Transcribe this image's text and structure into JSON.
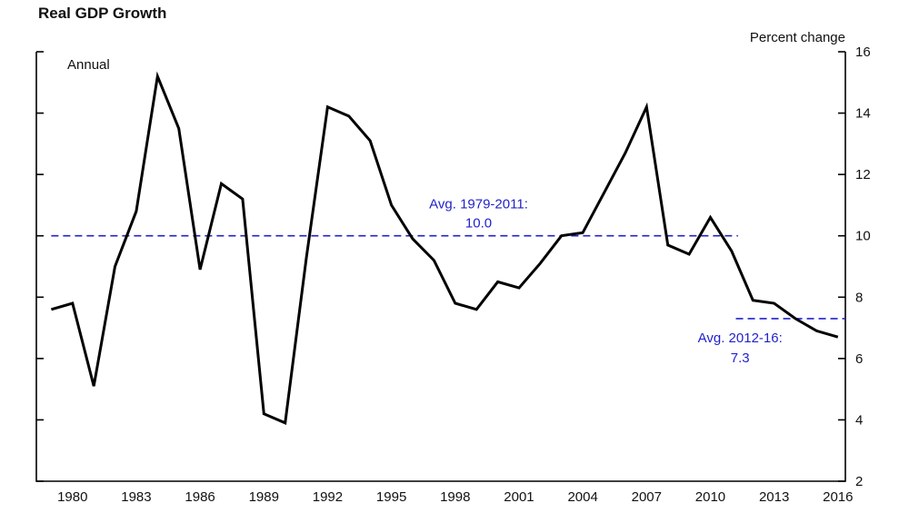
{
  "header": {
    "title": "Real GDP Growth",
    "unit_label": "Percent change",
    "series_label": "Annual"
  },
  "chart_data": {
    "type": "line",
    "title": "Real GDP Growth",
    "series_label": "Annual",
    "unit_label": "Percent change",
    "x": [
      1979,
      1980,
      1981,
      1982,
      1983,
      1984,
      1985,
      1986,
      1987,
      1988,
      1989,
      1990,
      1991,
      1992,
      1993,
      1994,
      1995,
      1996,
      1997,
      1998,
      1999,
      2000,
      2001,
      2002,
      2003,
      2004,
      2005,
      2006,
      2007,
      2008,
      2009,
      2010,
      2011,
      2012,
      2013,
      2014,
      2015,
      2016
    ],
    "values": [
      7.6,
      7.8,
      5.1,
      9.0,
      10.8,
      15.2,
      13.5,
      8.9,
      11.7,
      11.2,
      4.2,
      3.9,
      9.3,
      14.2,
      13.9,
      13.1,
      11.0,
      9.9,
      9.2,
      7.8,
      7.6,
      8.5,
      8.3,
      9.1,
      10.0,
      10.1,
      11.4,
      12.7,
      14.2,
      9.7,
      9.4,
      10.6,
      9.5,
      7.9,
      7.8,
      7.3,
      6.9,
      6.7
    ],
    "x_tick_labels": [
      "1980",
      "1983",
      "1986",
      "1989",
      "1992",
      "1995",
      "1998",
      "2001",
      "2004",
      "2007",
      "2010",
      "2013",
      "2016"
    ],
    "y_ticks": [
      2,
      4,
      6,
      8,
      10,
      12,
      14,
      16
    ],
    "ylim": [
      2,
      16
    ],
    "xlim": [
      1978.3,
      2016.35
    ],
    "grid": false,
    "line_color": "#000000",
    "annotations": [
      {
        "label_line1": "Avg. 1979-2011:",
        "label_line2": "10.0",
        "value": 10.0,
        "span": [
          1979,
          2011.3
        ],
        "label_x": 1999.1,
        "label_position": "above",
        "color": "#2222cc"
      },
      {
        "label_line1": "Avg. 2012-16:",
        "label_line2": "7.3",
        "value": 7.3,
        "span": [
          2011.2,
          2016.35
        ],
        "label_x": 2011.4,
        "label_position": "below",
        "color": "#2222cc"
      }
    ]
  }
}
